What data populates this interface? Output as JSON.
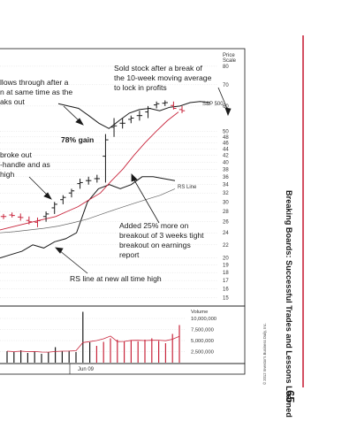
{
  "chart_data": {
    "type": "line",
    "price_axis": {
      "title_line1": "Price",
      "title_line2": "Scale",
      "ticks": [
        15,
        16,
        17,
        18,
        19,
        20,
        22,
        24,
        26,
        28,
        30,
        32,
        34,
        36,
        38,
        40,
        42,
        44,
        46,
        48,
        50,
        60,
        70,
        80
      ],
      "scale": "log",
      "range": [
        14.5,
        88
      ]
    },
    "volume_axis": {
      "title": "Volume",
      "ticks": [
        "10,000,000",
        "7,500,000",
        "5,000,000",
        "2,500,000"
      ],
      "values": [
        10000000,
        7500000,
        5000000,
        2500000
      ],
      "range": [
        0,
        12000000
      ]
    },
    "x_axis": {
      "label": "Jun 09"
    },
    "series": [
      {
        "name": "S&P 500",
        "label": "S&P 500",
        "values": [
          61,
          60,
          59,
          56,
          53,
          51,
          54,
          57,
          58.5,
          59,
          58,
          59.5,
          60,
          61.5,
          62,
          61.5
        ]
      },
      {
        "name": "RS Line",
        "label": "RS Line",
        "values": [
          20,
          20.5,
          21,
          22,
          21.5,
          22.5,
          23,
          24,
          30,
          33,
          34,
          33,
          34,
          36,
          36,
          35.5,
          35
        ]
      }
    ],
    "price_bars": [
      {
        "high": 27.5,
        "low": 26.5,
        "close": 27
      },
      {
        "high": 27.8,
        "low": 26.8,
        "close": 27.2
      },
      {
        "high": 27.6,
        "low": 26.2,
        "close": 26.8
      },
      {
        "high": 27,
        "low": 25.5,
        "close": 26
      },
      {
        "high": 26.8,
        "low": 25,
        "close": 26.2
      },
      {
        "high": 28,
        "low": 26,
        "close": 27.5
      },
      {
        "high": 30,
        "low": 27.5,
        "close": 29.5
      },
      {
        "high": 31.5,
        "low": 29.5,
        "close": 31
      },
      {
        "high": 33,
        "low": 31,
        "close": 32.5
      },
      {
        "high": 35.5,
        "low": 33,
        "close": 34.5
      },
      {
        "high": 36,
        "low": 34,
        "close": 35
      },
      {
        "high": 36.5,
        "low": 34.5,
        "close": 35.5
      },
      {
        "high": 49,
        "low": 34.5,
        "close": 47
      },
      {
        "high": 55,
        "low": 48,
        "close": 52
      },
      {
        "high": 55,
        "low": 51,
        "close": 53
      },
      {
        "high": 56,
        "low": 53,
        "close": 55
      },
      {
        "high": 58,
        "low": 54,
        "close": 56
      },
      {
        "high": 60,
        "low": 55,
        "close": 59
      },
      {
        "high": 62,
        "low": 59,
        "close": 61
      },
      {
        "high": 62.5,
        "low": 60,
        "close": 61.5
      },
      {
        "high": 62,
        "low": 58.5,
        "close": 59
      },
      {
        "high": 60,
        "low": 57,
        "close": 58
      }
    ],
    "moving_average_10wk": [
      24.5,
      25,
      25.5,
      26,
      26.5,
      27,
      28,
      29,
      30.5,
      32,
      35,
      38,
      42,
      46,
      50,
      54,
      57.5
    ],
    "moving_average_long": [
      24,
      24.2,
      24.5,
      24.8,
      25.2,
      25.8,
      26.5,
      27.5,
      28.5,
      29.5,
      30.5,
      31.5,
      33
    ],
    "volume": [
      2600000,
      2400000,
      2800000,
      2200000,
      2600000,
      2000000,
      2300000,
      3500000,
      2600000,
      2700000,
      2400000,
      11500000,
      4600000,
      3800000,
      4700000,
      5500000,
      5200000,
      4800000,
      5000000,
      4800000,
      5200000,
      5500000,
      4900000,
      4400000,
      6500000,
      8500000
    ],
    "annotations": {
      "breakout_percent": "78% gain",
      "sold": [
        "Sold stock after a break of",
        "the 10-week moving average",
        "to lock in profits"
      ],
      "follows": [
        "llows through after a",
        "n at same time as the",
        "aks out"
      ],
      "broke": [
        "broke out",
        "-handle and as",
        "high"
      ],
      "added": [
        "Added 25% more on",
        "breakout of 3 weeks tight",
        "breakout on earnings",
        "report"
      ],
      "rs_high": "RS line at new all time high"
    }
  },
  "sidebar": {
    "title": "Breaking Boards: Successful Trades and Lessons Learned",
    "page_number": "65",
    "copyright": "© 2012 Investor's Business Daily, Inc."
  },
  "colors": {
    "accent": "#c8243b",
    "ink": "#1a1a1a",
    "grid": "#d9d9d9"
  }
}
